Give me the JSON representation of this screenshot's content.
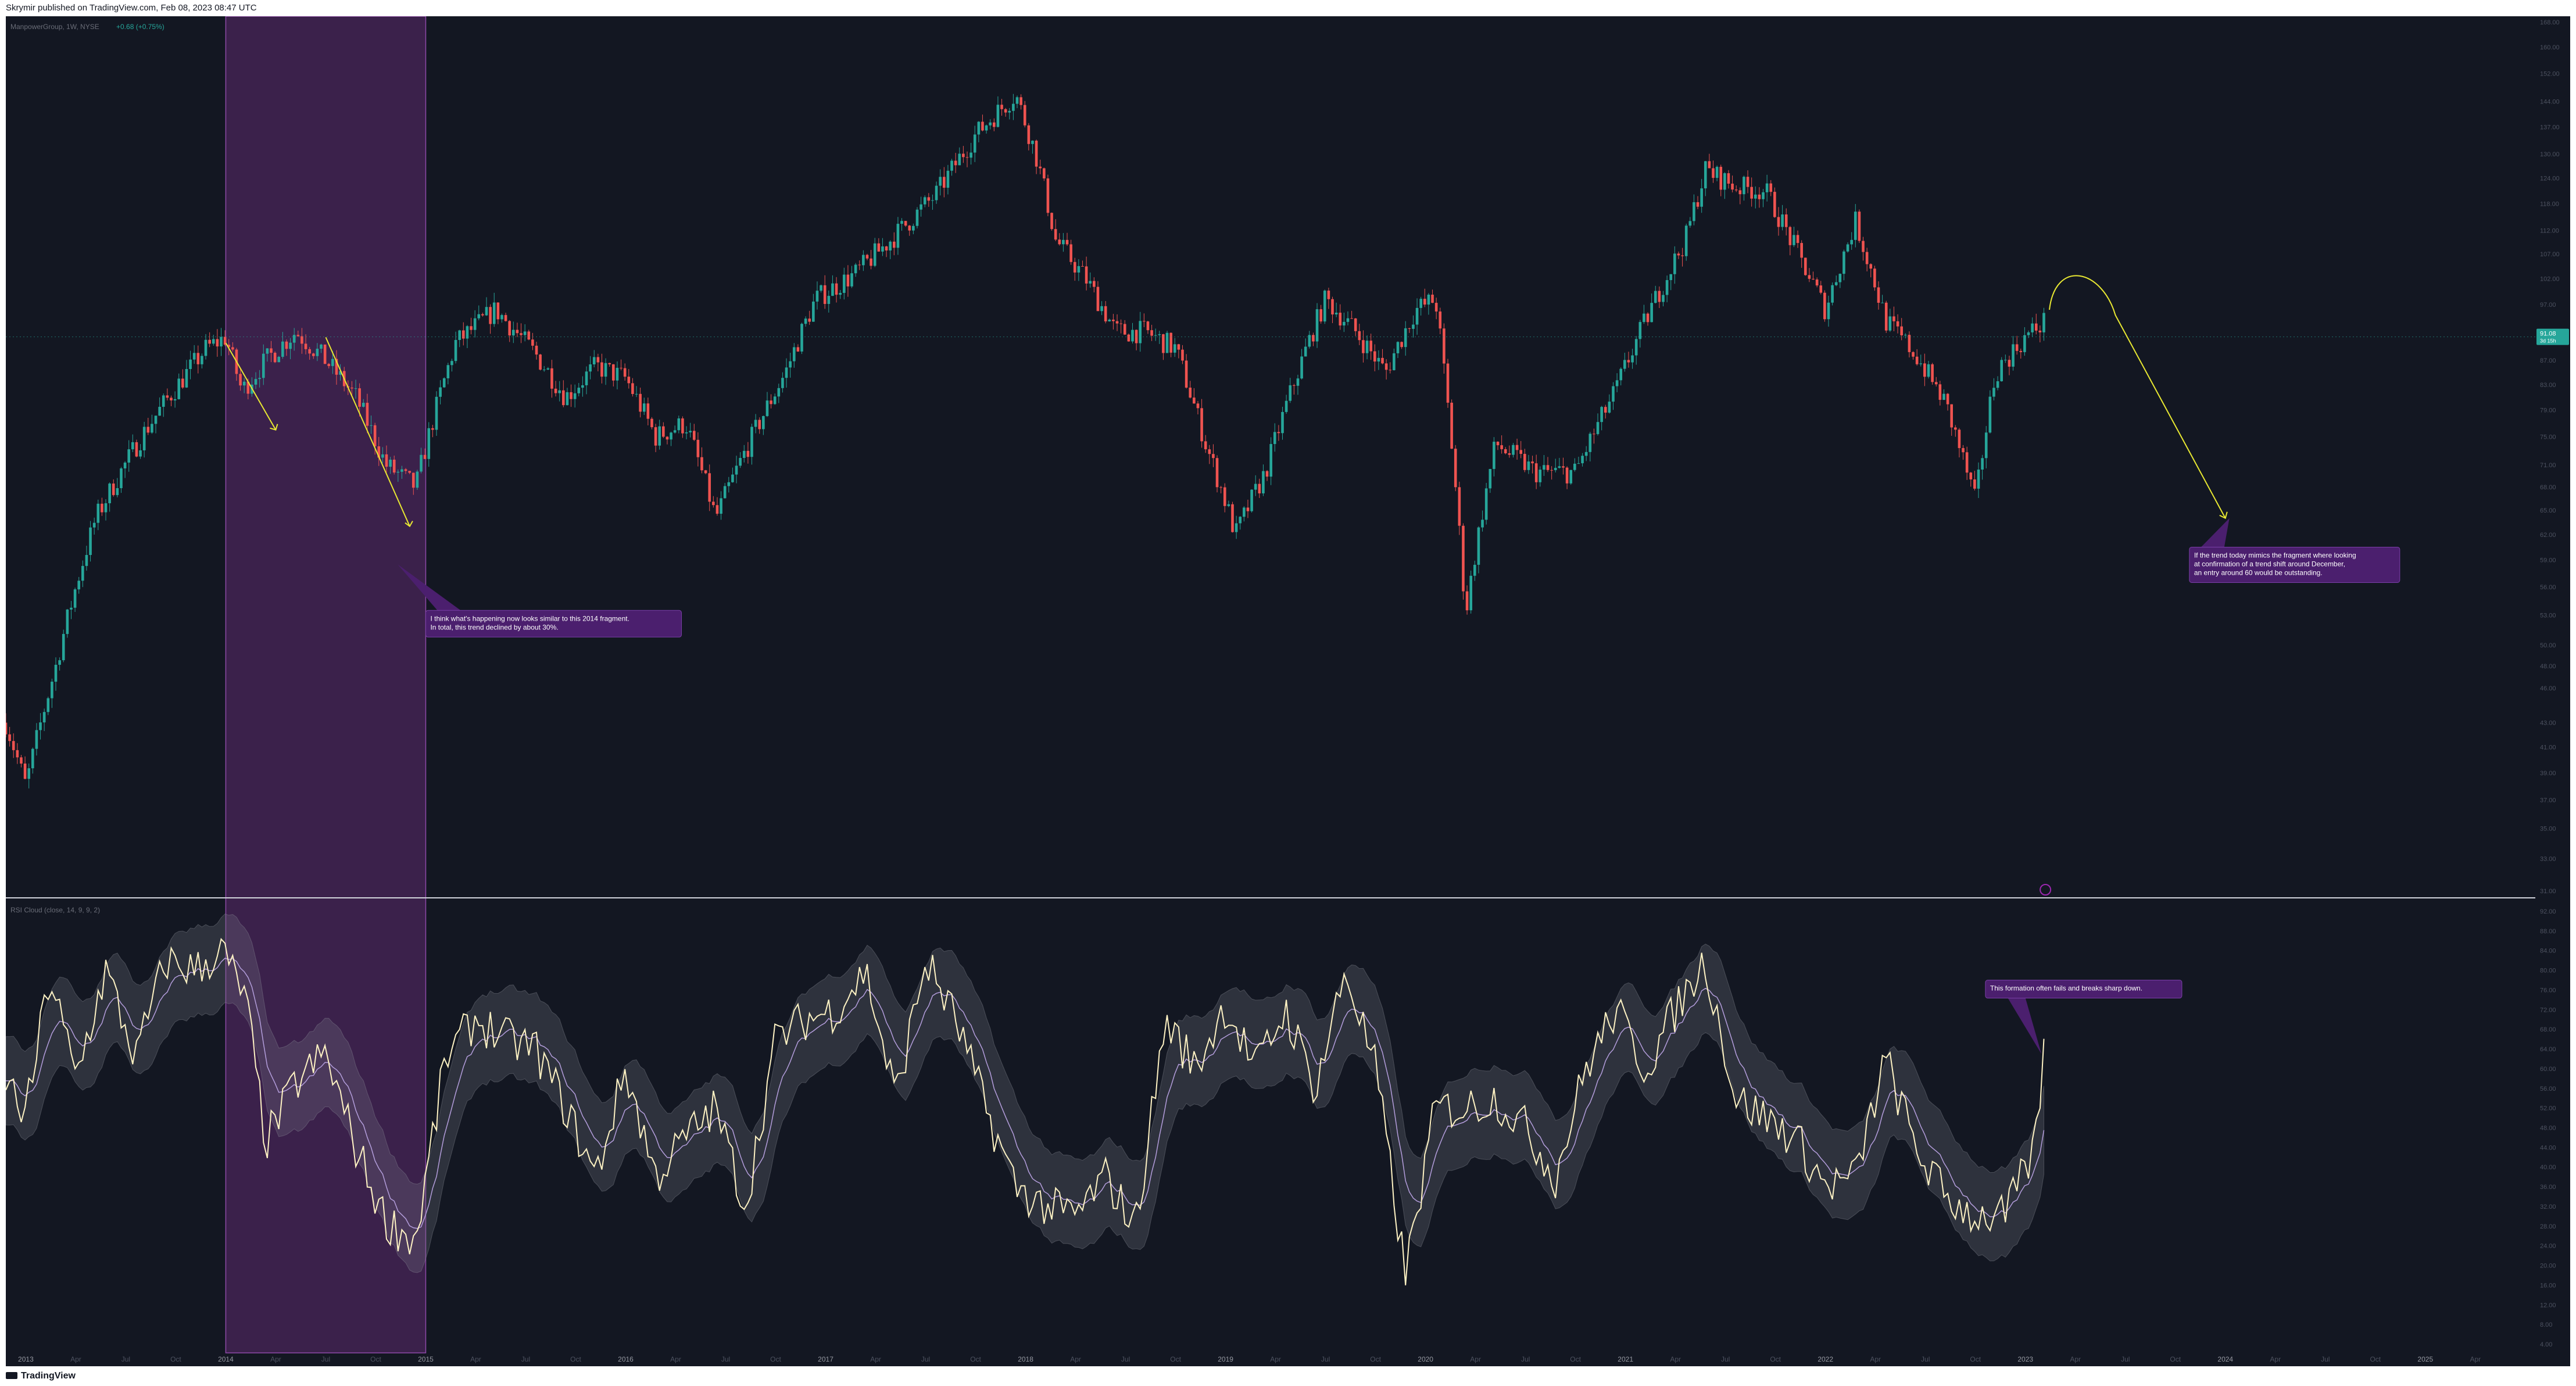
{
  "header": {
    "publish_line": "Skrymir published on TradingView.com, Feb 08, 2023 08:47 UTC"
  },
  "footer": {
    "brand": "TradingView"
  },
  "chart_data": [
    {
      "type": "candlestick",
      "legend": {
        "symbol_line": "ManpowerGroup, 1W, NYSE",
        "change": "+0.68 (+0.75%)"
      },
      "y_axis_scale": "log",
      "ylim": [
        31.0,
        168.0
      ],
      "y_ticks": [
        "168.00",
        "160.00",
        "152.00",
        "144.00",
        "137.00",
        "130.00",
        "124.00",
        "118.00",
        "112.00",
        "107.00",
        "102.00",
        "97.00",
        "92.00",
        "87.00",
        "83.00",
        "79.00",
        "75.00",
        "71.00",
        "68.00",
        "65.00",
        "62.00",
        "59.00",
        "56.00",
        "53.00",
        "50.00",
        "48.00",
        "46.00",
        "43.00",
        "41.00",
        "39.00",
        "37.00",
        "35.00",
        "33.00",
        "31.00"
      ],
      "last_price": "91.08",
      "last_price_countdown": "3d 15h",
      "colors": {
        "up": "#26a69a",
        "down": "#ef5350",
        "background": "#131722",
        "highlight": "#4a2559",
        "arrow": "#e8e832",
        "annotation_bg": "#4b1f6e"
      },
      "series_path_x": [
        2012.9,
        2013.0,
        2013.15,
        2013.35,
        2013.6,
        2013.9,
        2014.0,
        2014.08,
        2014.2,
        2014.35,
        2014.5,
        2014.65,
        2014.8,
        2014.95,
        2015.15,
        2015.35,
        2015.55,
        2015.7,
        2015.85,
        2016.0,
        2016.15,
        2016.3,
        2016.45,
        2016.6,
        2016.8,
        2016.95,
        2017.15,
        2017.35,
        2017.55,
        2017.75,
        2017.95,
        2018.05,
        2018.15,
        2018.3,
        2018.45,
        2018.6,
        2018.75,
        2018.9,
        2019.05,
        2019.2,
        2019.35,
        2019.5,
        2019.65,
        2019.8,
        2019.95,
        2020.05,
        2020.2,
        2020.35,
        2020.55,
        2020.75,
        2020.95,
        2021.15,
        2021.3,
        2021.4,
        2021.55,
        2021.7,
        2021.85,
        2022.0,
        2022.15,
        2022.3,
        2022.45,
        2022.6,
        2022.75,
        2022.85,
        2023.0,
        2023.1
      ],
      "series_path_close": [
        43,
        38,
        48,
        64,
        76,
        89,
        91,
        82,
        87,
        92,
        87,
        81,
        71,
        68,
        90,
        96,
        88,
        81,
        86,
        84,
        75,
        77,
        64,
        73,
        85,
        98,
        103,
        111,
        120,
        135,
        146,
        130,
        110,
        102,
        92,
        92,
        89,
        74,
        62,
        70,
        84,
        98,
        92,
        85,
        96,
        98,
        53,
        74,
        70,
        70,
        82,
        98,
        110,
        126,
        122,
        121,
        108,
        96,
        114,
        94,
        88,
        80,
        66,
        85,
        91,
        94
      ],
      "x_ticks": [
        "2013",
        "Apr",
        "Jul",
        "Oct",
        "2014",
        "Apr",
        "Jul",
        "Oct",
        "2015",
        "Apr",
        "Jul",
        "Oct",
        "2016",
        "Apr",
        "Jul",
        "Oct",
        "2017",
        "Apr",
        "Jul",
        "Oct",
        "2018",
        "Apr",
        "Jul",
        "Oct",
        "2019",
        "Apr",
        "Jul",
        "Oct",
        "2020",
        "Apr",
        "Jul",
        "Oct",
        "2021",
        "Apr",
        "Jul",
        "Oct",
        "2022",
        "Apr",
        "Jul",
        "Oct",
        "2023",
        "Apr",
        "Jul",
        "Oct",
        "2024",
        "Apr",
        "Jul",
        "Oct",
        "2025",
        "Apr"
      ],
      "highlight_range": [
        "2014-01",
        "2014-12"
      ],
      "annotations": [
        {
          "lines": [
            "I think what's happening now looks similar to this 2014 fragment.",
            "In total, this trend declined by about 30%."
          ]
        },
        {
          "lines": [
            "If the trend today mimics the fragment where looking",
            "at confirmation of a trend shift around December,",
            "an entry around 60 would be outstanding."
          ]
        }
      ]
    },
    {
      "type": "line",
      "legend": {
        "title": "RSI Cloud (close, 14, 9, 9, 2)"
      },
      "ylim": [
        4.0,
        92.0
      ],
      "y_ticks": [
        "92.00",
        "88.00",
        "84.00",
        "80.00",
        "76.00",
        "72.00",
        "68.00",
        "64.00",
        "60.00",
        "56.00",
        "52.00",
        "48.00",
        "44.00",
        "40.00",
        "36.00",
        "32.00",
        "28.00",
        "24.00",
        "20.00",
        "16.00",
        "12.00",
        "8.00",
        "4.00"
      ],
      "series_path_x": [
        2012.9,
        2013.0,
        2013.12,
        2013.25,
        2013.4,
        2013.55,
        2013.7,
        2013.85,
        2013.98,
        2014.1,
        2014.2,
        2014.35,
        2014.5,
        2014.65,
        2014.8,
        2014.95,
        2015.1,
        2015.25,
        2015.4,
        2015.55,
        2015.7,
        2015.85,
        2016.0,
        2016.15,
        2016.3,
        2016.45,
        2016.6,
        2016.75,
        2016.9,
        2017.05,
        2017.2,
        2017.35,
        2017.5,
        2017.65,
        2017.8,
        2017.95,
        2018.1,
        2018.25,
        2018.4,
        2018.55,
        2018.7,
        2018.85,
        2019.0,
        2019.15,
        2019.3,
        2019.45,
        2019.6,
        2019.75,
        2019.9,
        2020.05,
        2020.2,
        2020.35,
        2020.5,
        2020.65,
        2020.8,
        2020.95,
        2021.1,
        2021.25,
        2021.4,
        2021.55,
        2021.7,
        2021.85,
        2022.0,
        2022.15,
        2022.3,
        2022.45,
        2022.6,
        2022.75,
        2022.9,
        2023.05,
        2023.1
      ],
      "series_path_rsi": [
        58,
        50,
        79,
        58,
        80,
        62,
        82,
        80,
        84,
        74,
        45,
        57,
        63,
        44,
        29,
        25,
        62,
        70,
        66,
        64,
        52,
        38,
        60,
        38,
        46,
        52,
        32,
        66,
        70,
        72,
        80,
        54,
        82,
        70,
        52,
        36,
        32,
        30,
        38,
        28,
        70,
        60,
        73,
        60,
        72,
        56,
        80,
        60,
        18,
        52,
        52,
        54,
        48,
        38,
        60,
        72,
        60,
        72,
        82,
        54,
        50,
        46,
        36,
        38,
        62,
        44,
        34,
        30,
        30,
        44,
        68
      ],
      "annotations": [
        {
          "lines": [
            "This formation often fails and breaks sharp down."
          ]
        }
      ]
    }
  ]
}
